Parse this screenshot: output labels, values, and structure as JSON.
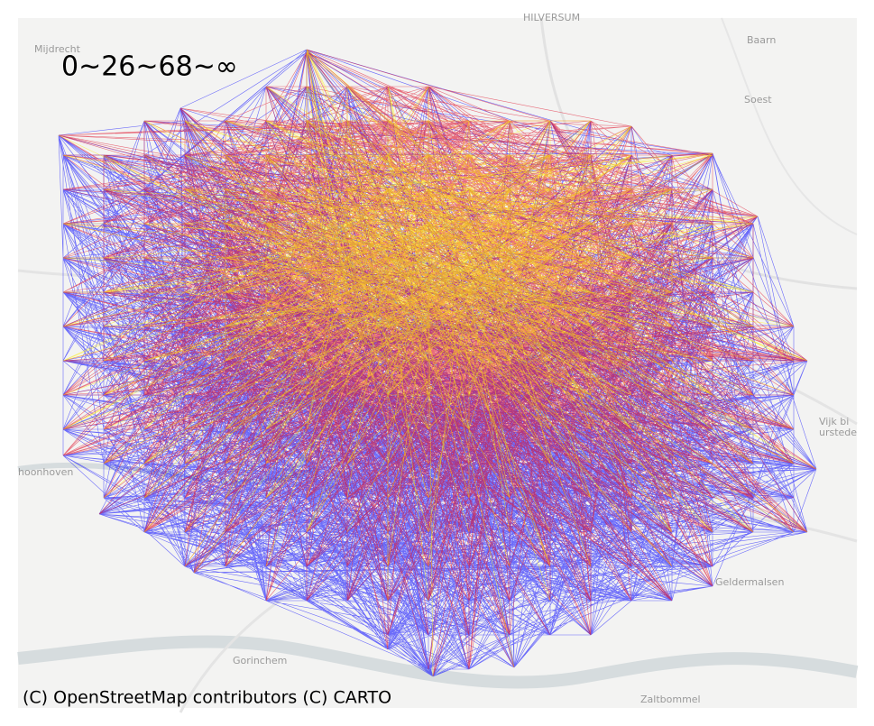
{
  "map": {
    "legend": "0~26~68~∞",
    "attribution": "(C) OpenStreetMap contributors (C) CARTO",
    "places": [
      "HILVERSUM",
      "Baarn",
      "Mijdrecht",
      "Soest",
      "Vijk bi",
      "urstede",
      "hoonhoven",
      "Geldermalsen",
      "Gorinchem",
      "Zaltbommel"
    ]
  }
}
